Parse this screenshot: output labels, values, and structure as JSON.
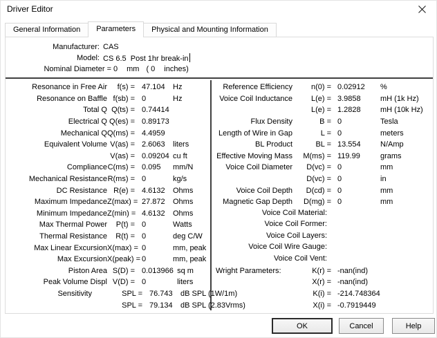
{
  "window": {
    "title": "Driver Editor",
    "close_icon": "x-close"
  },
  "tabs": [
    {
      "label": "General Information",
      "active": false
    },
    {
      "label": "Parameters",
      "active": true
    },
    {
      "label": "Physical and Mounting Information",
      "active": false
    }
  ],
  "header": {
    "manufacturer_label": "Manufacturer:",
    "manufacturer_value": "CAS",
    "model_label": "Model:",
    "model_value": "CS 6.5  Post 1hr break-in",
    "nominal_label": "Nominal Diameter =",
    "nominal_value": "0",
    "nominal_unit": "mm",
    "nominal_paren": "( 0",
    "nominal_paren_unit": "inches)"
  },
  "left_column": {
    "rows": [
      {
        "label": "Resonance in Free Air",
        "sym": "f(s) =",
        "val": "47.104",
        "unit": "Hz",
        "variant": ""
      },
      {
        "label": "Resonance on Baffle",
        "sym": "f(sb) =",
        "val": "0",
        "unit": "Hz",
        "variant": ""
      },
      {
        "label": "Total Q",
        "sym": "Q(ts) =",
        "val": "0.74414",
        "unit": "",
        "variant": ""
      },
      {
        "label": "Electrical Q",
        "sym": "Q(es) =",
        "val": "0.89173",
        "unit": "",
        "variant": ""
      },
      {
        "label": "Mechanical Q",
        "sym": "Q(ms) =",
        "val": "4.4959",
        "unit": "",
        "variant": ""
      },
      {
        "label": "Equivalent Volume",
        "sym": "V(as) =",
        "val": "2.6063",
        "unit": "liters",
        "variant": ""
      },
      {
        "label": "",
        "sym": "V(as) =",
        "val": "0.09204",
        "unit": "cu ft",
        "variant": ""
      },
      {
        "label": "Compliance",
        "sym": "C(ms) =",
        "val": "0.095",
        "unit": "mm/N",
        "variant": ""
      },
      {
        "label": "Mechanical Resistance",
        "sym": "R(ms) =",
        "val": "0",
        "unit": "kg/s",
        "variant": ""
      },
      {
        "label": "DC Resistance",
        "sym": "R(e) =",
        "val": "4.6132",
        "unit": "Ohms",
        "variant": ""
      },
      {
        "label": "Maximum Impedance",
        "sym": "Z(max) =",
        "val": "27.872",
        "unit": "Ohms",
        "variant": ""
      },
      {
        "label": "Minimum Impedance",
        "sym": "Z(min) =",
        "val": "4.6132",
        "unit": "Ohms",
        "variant": ""
      },
      {
        "label": "Max Thermal Power",
        "sym": "P(t) =",
        "val": "0",
        "unit": "Watts",
        "variant": ""
      },
      {
        "label": "Thermal Resistance",
        "sym": "R(t) =",
        "val": "0",
        "unit": "deg C/W",
        "variant": ""
      },
      {
        "label": "Max Linear Excursion",
        "sym": "X(max) =",
        "val": "0",
        "unit": "mm, peak",
        "variant": ""
      },
      {
        "label": "Max Excursion",
        "sym": "X(peak) =",
        "val": "0",
        "unit": "mm, peak",
        "variant": ""
      },
      {
        "label": "Piston Area",
        "sym": "S(D) =",
        "val": "0.013966",
        "unit": "  sq m",
        "variant": ""
      },
      {
        "label": "Peak Volume Displ",
        "sym": "V(D) =",
        "val": "0",
        "unit": "  liters",
        "variant": ""
      },
      {
        "label": "Sensitivity",
        "sym": "SPL =",
        "val": "76.743",
        "unit": "dB SPL (1W/1m)",
        "variant": "shift"
      },
      {
        "label": "",
        "sym": "SPL =",
        "val": "79.134",
        "unit": "dB SPL (2.83Vrms)",
        "variant": "shift"
      }
    ]
  },
  "right_column": {
    "rows": [
      {
        "label": "Reference Efficiency",
        "sym": "n(0) =",
        "val": "0.02912",
        "unit": "%",
        "variant": ""
      },
      {
        "label": "Voice Coil Inductance",
        "sym": "L(e) =",
        "val": "3.9858",
        "unit": "mH (1k Hz)",
        "variant": ""
      },
      {
        "label": "",
        "sym": "L(e) =",
        "val": "1.2828",
        "unit": "mH (10k Hz)",
        "variant": ""
      },
      {
        "label": "Flux Density",
        "sym": "B =",
        "val": "0",
        "unit": "Tesla",
        "variant": ""
      },
      {
        "label": "Length of Wire in Gap",
        "sym": "L =",
        "val": "0",
        "unit": "meters",
        "variant": ""
      },
      {
        "label": "BL Product",
        "sym": "BL =",
        "val": "13.554",
        "unit": "N/Amp",
        "variant": ""
      },
      {
        "label": "Effective Moving Mass",
        "sym": "M(ms) =",
        "val": "119.99",
        "unit": "grams",
        "variant": ""
      },
      {
        "label": "Voice Coil Diameter",
        "sym": "D(vc) =",
        "val": "0",
        "unit": "mm",
        "variant": ""
      },
      {
        "label": "",
        "sym": "D(vc) =",
        "val": "0",
        "unit": "in",
        "variant": ""
      },
      {
        "label": "Voice Coil Depth",
        "sym": "D(cd) =",
        "val": "0",
        "unit": "mm",
        "variant": ""
      },
      {
        "label": "Magnetic Gap Depth",
        "sym": "D(mg) =",
        "val": "0",
        "unit": "mm",
        "variant": ""
      },
      {
        "label": "Voice Coil Material:",
        "sym": "",
        "val": "",
        "unit": "",
        "variant": "span"
      },
      {
        "label": "Voice Coil Former:",
        "sym": "",
        "val": "",
        "unit": "",
        "variant": "span"
      },
      {
        "label": "Voice Coil Layers:",
        "sym": "",
        "val": "",
        "unit": "",
        "variant": "span"
      },
      {
        "label": "Voice Coil Wire Gauge:",
        "sym": "",
        "val": "",
        "unit": "",
        "variant": "span"
      },
      {
        "label": "Voice Coil Vent:",
        "sym": "",
        "val": "",
        "unit": "",
        "variant": "span"
      },
      {
        "label": "Wright Parameters:",
        "sym": "K(r) =",
        "val": "-nan(ind)",
        "unit": "",
        "variant": "leftlabel"
      },
      {
        "label": "",
        "sym": "X(r) =",
        "val": "-nan(ind)",
        "unit": "",
        "variant": ""
      },
      {
        "label": "",
        "sym": "K(i) =",
        "val": "-214.748364",
        "unit": "",
        "variant": ""
      },
      {
        "label": "",
        "sym": "X(i) =",
        "val": "-0.7919449",
        "unit": "",
        "variant": ""
      }
    ]
  },
  "buttons": [
    {
      "label": "OK",
      "default": true
    },
    {
      "label": "Cancel",
      "default": false
    },
    {
      "label": "Help",
      "default": false
    }
  ],
  "colors": {
    "text": "#000000",
    "background": "#ffffff",
    "separator": "#3f3f3f",
    "tab_border": "#d9d9d9",
    "page_border": "#dcdcdc",
    "button_border": "#8a8a8a",
    "default_button_border": "#2b2b2b"
  }
}
